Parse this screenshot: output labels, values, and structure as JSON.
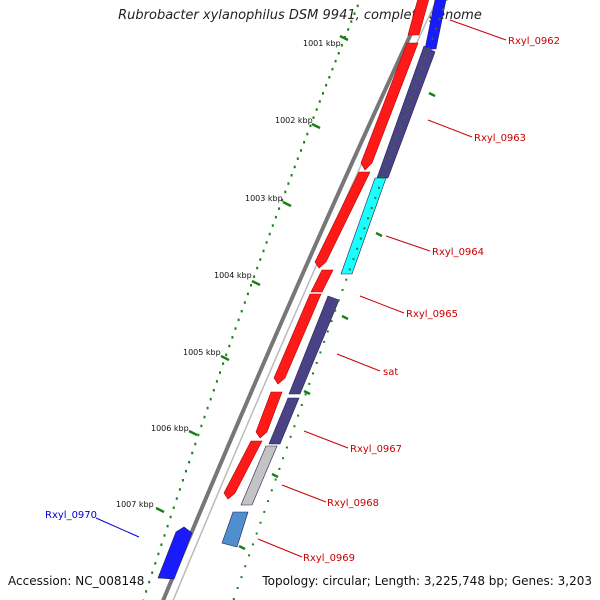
{
  "title": "Rubrobacter xylanophilus DSM 9941, complete genome",
  "accession_text": "Accession: NC_008148",
  "summary_text": "Topology: circular; Length: 3,225,748 bp; Genes: 3,203",
  "colors": {
    "backbone": "#888888",
    "forward_cds": "#ff1a1a",
    "reverse_cds": "#4b4185",
    "highlight_blue": "#1a1aff",
    "cyan": "#19ffff",
    "light_gray": "#c3c3c3",
    "steel_blue": "#4f8fcd",
    "tick": "#1a801a",
    "label_red": "#cc0000",
    "label_blue": "#0000cc"
  },
  "ticks": [
    {
      "label": "1001 kbp"
    },
    {
      "label": "1002 kbp"
    },
    {
      "label": "1003 kbp"
    },
    {
      "label": "1004 kbp"
    },
    {
      "label": "1005 kbp"
    },
    {
      "label": "1006 kbp"
    },
    {
      "label": "1007 kbp"
    }
  ],
  "gene_labels": [
    {
      "label": "Rxyl_0962",
      "color": "red"
    },
    {
      "label": "Rxyl_0963",
      "color": "red"
    },
    {
      "label": "Rxyl_0964",
      "color": "red"
    },
    {
      "label": "Rxyl_0965",
      "color": "red"
    },
    {
      "label": "sat",
      "color": "red"
    },
    {
      "label": "Rxyl_0967",
      "color": "red"
    },
    {
      "label": "Rxyl_0968",
      "color": "red"
    },
    {
      "label": "Rxyl_0969",
      "color": "red"
    },
    {
      "label": "Rxyl_0970",
      "color": "blue"
    }
  ]
}
